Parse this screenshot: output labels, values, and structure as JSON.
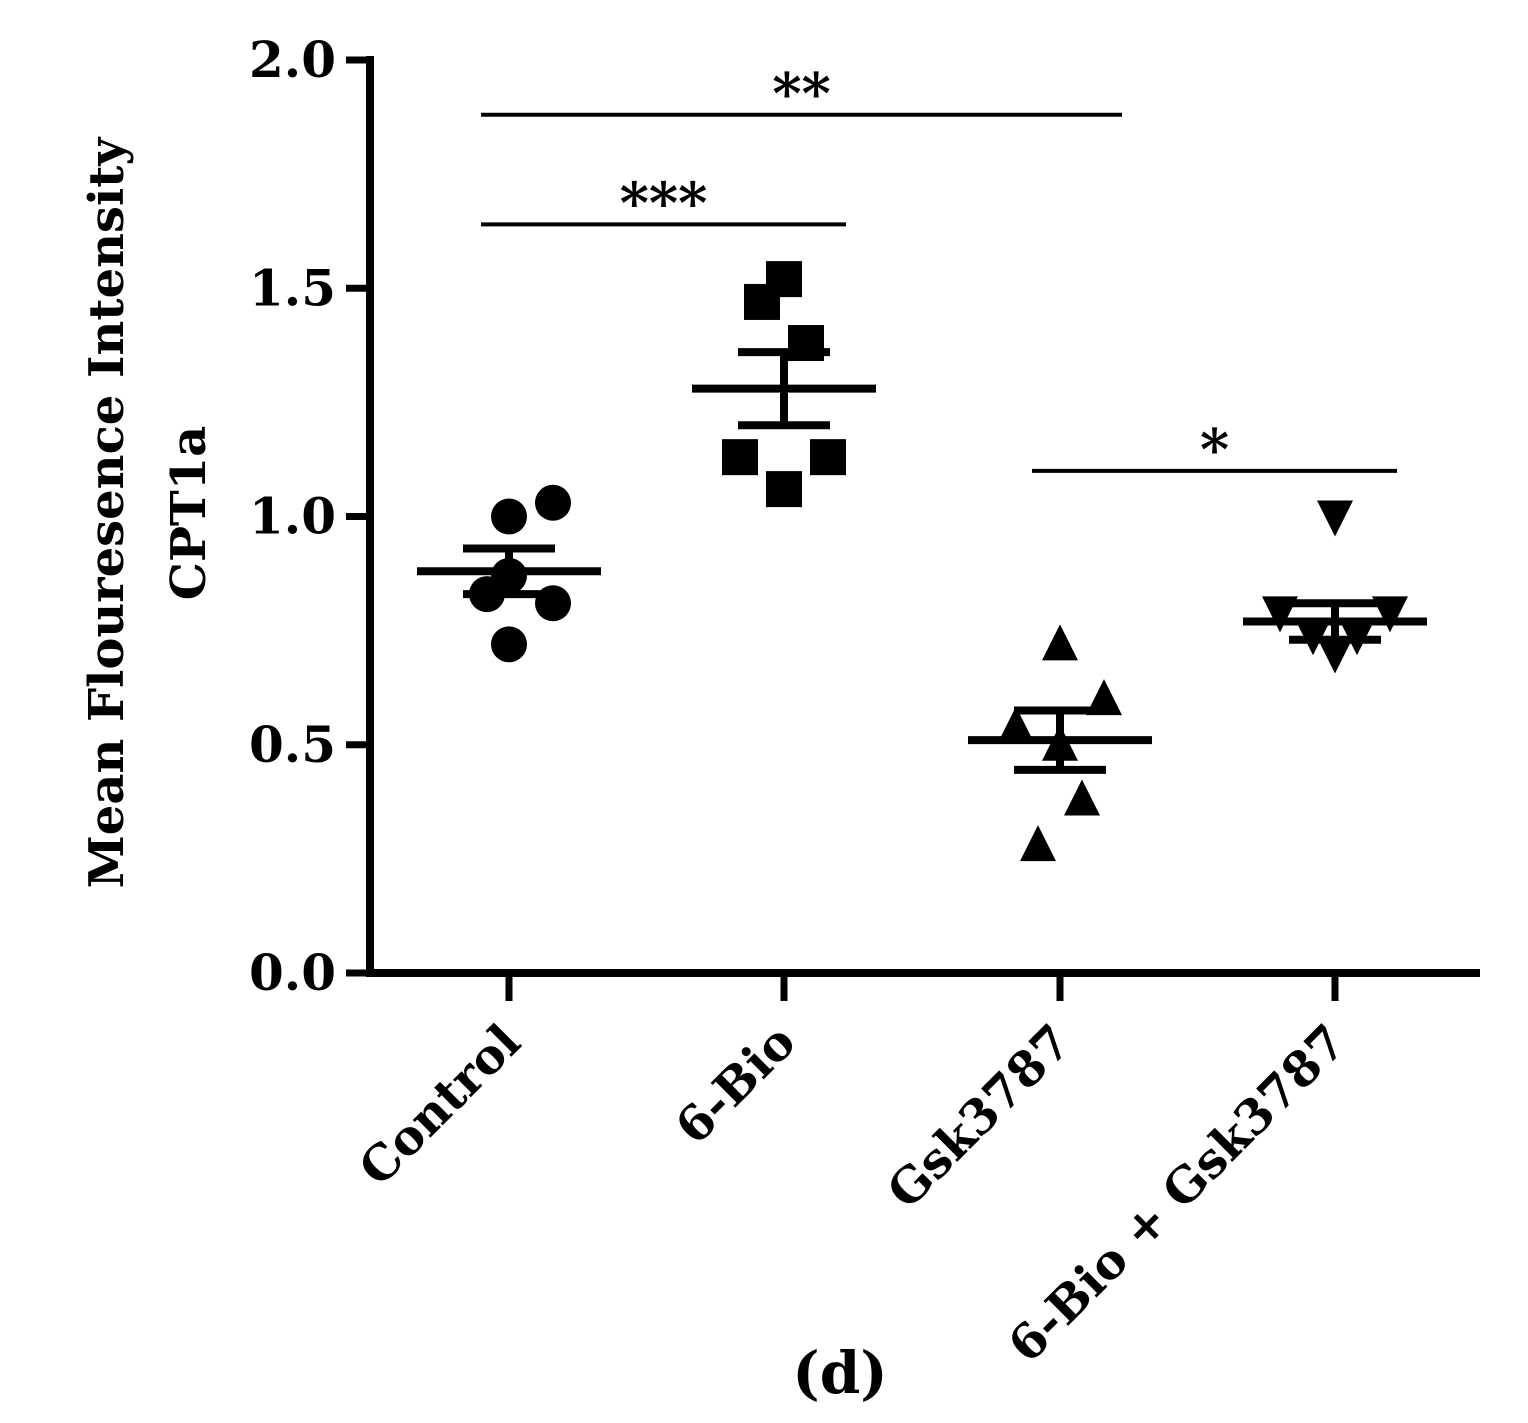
{
  "chart_data": {
    "type": "scatter",
    "title": "",
    "ylabel_lines": [
      "Mean Flouresence Intensity",
      "CPT1a"
    ],
    "xlabel": "",
    "ylim": [
      0,
      2.0
    ],
    "yticks": [
      0.0,
      0.5,
      1.0,
      1.5,
      2.0
    ],
    "ytick_labels": [
      "0.0",
      "0.5",
      "1.0",
      "1.5",
      "2.0"
    ],
    "categories": [
      "Control",
      "6-Bio",
      "Gsk3787",
      "6-Bio + Gsk3787"
    ],
    "series": [
      {
        "name": "Control",
        "marker": "circle",
        "points": [
          {
            "x": 0.0,
            "y": 1.0
          },
          {
            "x": 0.2,
            "y": 1.03
          },
          {
            "x": -0.1,
            "y": 0.83
          },
          {
            "x": 0.0,
            "y": 0.87
          },
          {
            "x": 0.2,
            "y": 0.81
          },
          {
            "x": 0.0,
            "y": 0.72
          }
        ],
        "mean": 0.88,
        "sem": 0.05
      },
      {
        "name": "6-Bio",
        "marker": "square",
        "points": [
          {
            "x": 0.0,
            "y": 1.52
          },
          {
            "x": -0.1,
            "y": 1.47
          },
          {
            "x": 0.1,
            "y": 1.38
          },
          {
            "x": -0.2,
            "y": 1.13
          },
          {
            "x": 0.2,
            "y": 1.13
          },
          {
            "x": 0.0,
            "y": 1.06
          }
        ],
        "mean": 1.28,
        "sem": 0.08
      },
      {
        "name": "Gsk3787",
        "marker": "triangle-up",
        "points": [
          {
            "x": 0.0,
            "y": 0.72
          },
          {
            "x": 0.2,
            "y": 0.6
          },
          {
            "x": -0.2,
            "y": 0.54
          },
          {
            "x": 0.0,
            "y": 0.5
          },
          {
            "x": 0.1,
            "y": 0.38
          },
          {
            "x": -0.1,
            "y": 0.28
          }
        ],
        "mean": 0.51,
        "sem": 0.065
      },
      {
        "name": "6-Bio + Gsk3787",
        "marker": "triangle-down",
        "points": [
          {
            "x": 0.0,
            "y": 1.0
          },
          {
            "x": -0.25,
            "y": 0.79
          },
          {
            "x": 0.25,
            "y": 0.79
          },
          {
            "x": -0.1,
            "y": 0.74
          },
          {
            "x": 0.1,
            "y": 0.74
          },
          {
            "x": 0.0,
            "y": 0.7
          }
        ],
        "mean": 0.77,
        "sem": 0.04
      }
    ],
    "significance": [
      {
        "from": "Control",
        "to": "Gsk3787",
        "y": 1.88,
        "label": "**"
      },
      {
        "from": "Control",
        "to": "6-Bio",
        "y": 1.64,
        "label": "***"
      },
      {
        "from": "Gsk3787",
        "to": "6-Bio + Gsk3787",
        "y": 1.1,
        "label": "*"
      }
    ],
    "panel_label": "(d)"
  }
}
